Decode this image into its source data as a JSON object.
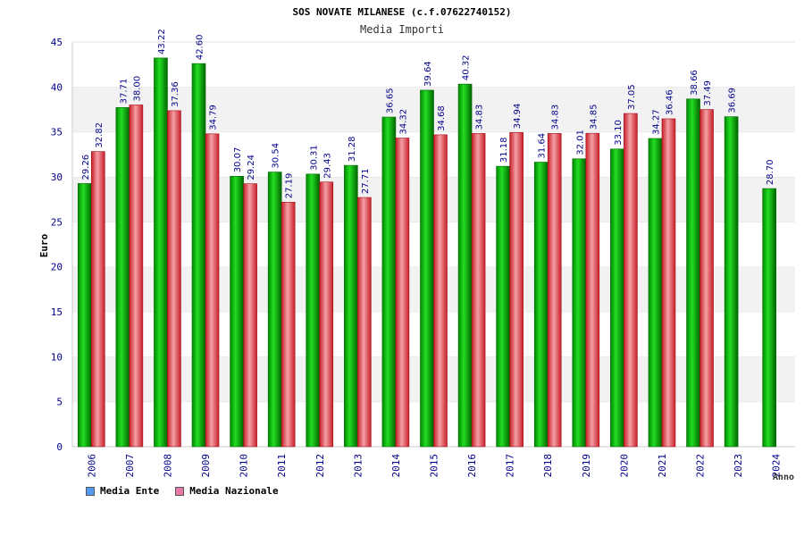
{
  "chart_data": {
    "type": "bar",
    "title": "SOS NOVATE MILANESE (c.f.07622740152)",
    "subtitle": "Media Importi",
    "ylabel": "Euro",
    "xlabel": "Anno",
    "ylim": [
      0,
      45
    ],
    "yticks": [
      "0",
      "5",
      "10",
      "15",
      "20",
      "25",
      "30",
      "35",
      "40",
      "45"
    ],
    "categories": [
      "2006",
      "2007",
      "2008",
      "2009",
      "2010",
      "2011",
      "2012",
      "2013",
      "2014",
      "2015",
      "2016",
      "2017",
      "2018",
      "2019",
      "2020",
      "2021",
      "2022",
      "2023",
      "2024"
    ],
    "series": [
      {
        "name": "Media Ente",
        "color": "#00c000",
        "values": [
          29.26,
          37.71,
          43.22,
          42.6,
          30.07,
          30.54,
          30.31,
          31.28,
          36.65,
          39.64,
          40.32,
          31.18,
          31.64,
          32.01,
          33.1,
          34.27,
          38.66,
          36.69,
          28.7
        ],
        "labels": [
          "29.26",
          "37.71",
          "43.22",
          "42.60",
          "30.07",
          "30.54",
          "30.31",
          "31.28",
          "36.65",
          "39.64",
          "40.32",
          "31.18",
          "31.64",
          "32.01",
          "33.10",
          "34.27",
          "38.66",
          "36.69",
          "28.70"
        ]
      },
      {
        "name": "Media Nazionale",
        "color": "#e8303a",
        "values": [
          32.82,
          38.0,
          37.36,
          34.79,
          29.24,
          27.19,
          29.43,
          27.71,
          34.32,
          34.68,
          34.83,
          34.94,
          34.83,
          34.85,
          37.05,
          36.46,
          37.49,
          null,
          null
        ],
        "labels": [
          "32.82",
          "38.00",
          "37.36",
          "34.79",
          "29.24",
          "27.19",
          "29.43",
          "27.71",
          "34.32",
          "34.68",
          "34.83",
          "34.94",
          "34.83",
          "34.85",
          "37.05",
          "36.46",
          "37.49",
          null,
          null
        ]
      }
    ],
    "grid": true,
    "legend": "bottom-left",
    "legend_entries": [
      {
        "name": "Media Ente",
        "color": "#5599ee"
      },
      {
        "name": "Media Nazionale",
        "color": "#e87aa8"
      }
    ]
  }
}
